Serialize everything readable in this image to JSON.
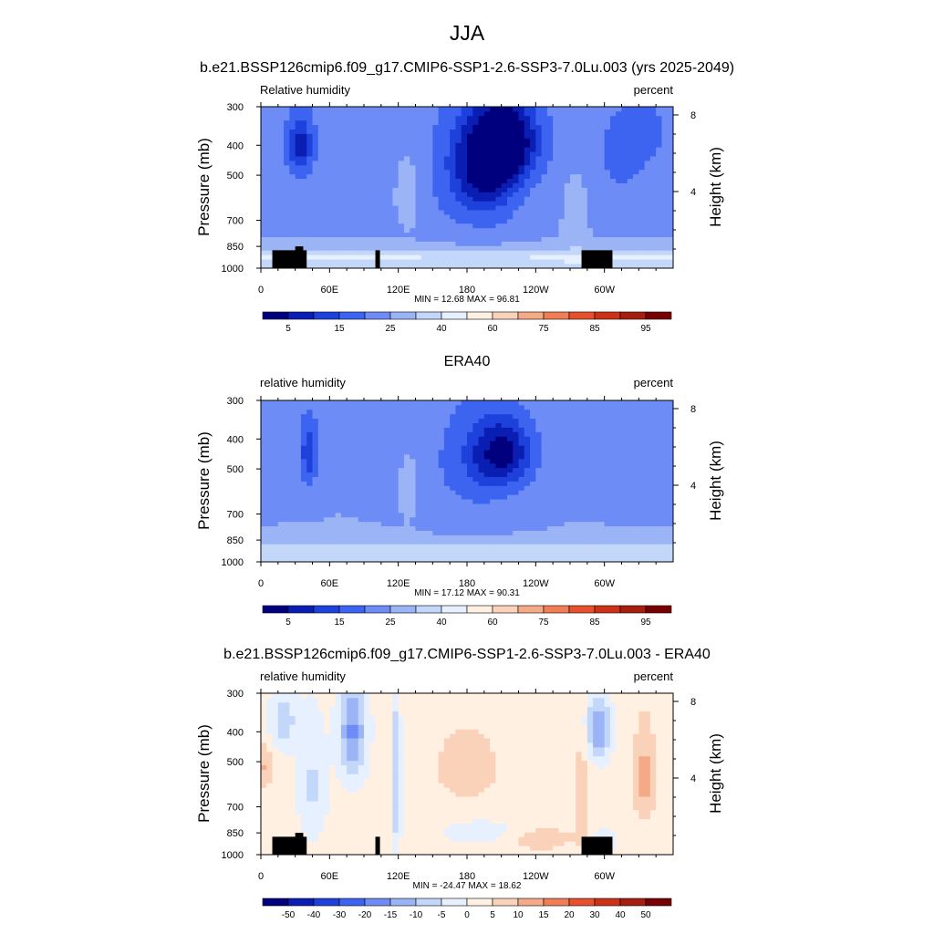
{
  "main_title": "JJA",
  "chart_data": [
    {
      "type": "heatmap",
      "title": "b.e21.BSSP126cmip6.f09_g17.CMIP6-SSP1-2.6-SSP3-7.0Lu.003 (yrs 2025-2049)",
      "left_label": "Relative humidity",
      "right_label": "percent",
      "ylabel": "Pressure (mb)",
      "y2label": "Height (km)",
      "x_ticks": [
        "0",
        "60E",
        "120E",
        "180",
        "120W",
        "60W"
      ],
      "x_range": [
        0,
        360
      ],
      "y_ticks": [
        "300",
        "400",
        "500",
        "700",
        "850",
        "1000"
      ],
      "y_range": [
        1000,
        300
      ],
      "y2_ticks": [
        "8",
        "4"
      ],
      "stats": "MIN =  12.68  MAX =  96.81",
      "colorbar": {
        "labels": [
          "5",
          "15",
          "25",
          "40",
          "60",
          "75",
          "85",
          "95"
        ],
        "colors": [
          "#00007f",
          "#0a1eb4",
          "#1e41dc",
          "#3c64f0",
          "#6e8cf5",
          "#9bb4f5",
          "#c3d7fa",
          "#e6f0ff",
          "#fff0e1",
          "#fad2b9",
          "#f5aa87",
          "#f07d55",
          "#e6502d",
          "#cd3219",
          "#a51e0f",
          "#780000"
        ]
      },
      "topography": true,
      "fields": {
        "base": 58,
        "surface_band": 86,
        "blobs": [
          {
            "lon": 35,
            "p": 400,
            "amp": -48,
            "wlon": 14,
            "wp": 120
          },
          {
            "lon": 180,
            "p": 470,
            "amp": -30,
            "wlon": 45,
            "wp": 260
          },
          {
            "lon": 200,
            "p": 500,
            "amp": -28,
            "wlon": 30,
            "wp": 220
          },
          {
            "lon": 220,
            "p": 380,
            "amp": -46,
            "wlon": 34,
            "wp": 140
          },
          {
            "lon": 315,
            "p": 420,
            "amp": -24,
            "wlon": 28,
            "wp": 190
          },
          {
            "lon": 340,
            "p": 350,
            "amp": -15,
            "wlon": 18,
            "wp": 100
          },
          {
            "lon": 5,
            "p": 380,
            "amp": -10,
            "wlon": 15,
            "wp": 150
          },
          {
            "lon": 130,
            "p": 560,
            "amp": 18,
            "wlon": 12,
            "wp": 160
          },
          {
            "lon": 275,
            "p": 650,
            "amp": 14,
            "wlon": 10,
            "wp": 200
          }
        ]
      }
    },
    {
      "type": "heatmap",
      "title": "ERA40",
      "left_label": "relative humidity",
      "right_label": "percent",
      "ylabel": "Pressure (mb)",
      "y2label": "Height (km)",
      "x_ticks": [
        "0",
        "60E",
        "120E",
        "180",
        "120W",
        "60W"
      ],
      "x_range": [
        0,
        360
      ],
      "y_ticks": [
        "300",
        "400",
        "500",
        "700",
        "850",
        "1000"
      ],
      "y_range": [
        1000,
        300
      ],
      "y2_ticks": [
        "8",
        "4"
      ],
      "stats": "MIN =  17.12  MAX =  90.31",
      "colorbar": {
        "labels": [
          "5",
          "15",
          "25",
          "40",
          "60",
          "75",
          "85",
          "95"
        ],
        "colors": [
          "#00007f",
          "#0a1eb4",
          "#1e41dc",
          "#3c64f0",
          "#6e8cf5",
          "#9bb4f5",
          "#c3d7fa",
          "#e6f0ff",
          "#fff0e1",
          "#fad2b9",
          "#f5aa87",
          "#f07d55",
          "#e6502d",
          "#cd3219",
          "#a51e0f",
          "#780000"
        ]
      },
      "topography": false,
      "fields": {
        "base": 60,
        "surface_band": 84,
        "blobs": [
          {
            "lon": 42,
            "p": 440,
            "amp": -44,
            "wlon": 10,
            "wp": 140
          },
          {
            "lon": 185,
            "p": 470,
            "amp": -28,
            "wlon": 45,
            "wp": 260
          },
          {
            "lon": 215,
            "p": 440,
            "amp": -42,
            "wlon": 30,
            "wp": 130
          },
          {
            "lon": 330,
            "p": 450,
            "amp": -20,
            "wlon": 25,
            "wp": 180
          },
          {
            "lon": 5,
            "p": 450,
            "amp": -12,
            "wlon": 15,
            "wp": 160
          },
          {
            "lon": 130,
            "p": 560,
            "amp": 12,
            "wlon": 8,
            "wp": 140
          }
        ]
      }
    },
    {
      "type": "heatmap",
      "title": "b.e21.BSSP126cmip6.f09_g17.CMIP6-SSP1-2.6-SSP3-7.0Lu.003 - ERA40",
      "left_label": "relative humidity",
      "right_label": "percent",
      "ylabel": "Pressure (mb)",
      "y2label": "Height (km)",
      "x_ticks": [
        "0",
        "60E",
        "120E",
        "180",
        "120W",
        "60W"
      ],
      "x_range": [
        0,
        360
      ],
      "y_ticks": [
        "300",
        "400",
        "500",
        "700",
        "850",
        "1000"
      ],
      "y_range": [
        1000,
        300
      ],
      "y2_ticks": [
        "8",
        "4"
      ],
      "stats": "MIN = -24.47  MAX =  18.62",
      "colorbar": {
        "labels": [
          "-50",
          "-40",
          "-30",
          "-20",
          "-15",
          "-10",
          "-5",
          "0",
          "5",
          "10",
          "15",
          "20",
          "30",
          "40",
          "50"
        ],
        "colors": [
          "#00007f",
          "#0a1eb4",
          "#1e41dc",
          "#3c64f0",
          "#6e8cf5",
          "#9bb4f5",
          "#c3d7fa",
          "#e6f0ff",
          "#fff0e1",
          "#fad2b9",
          "#f5aa87",
          "#f07d55",
          "#e6502d",
          "#cd3219",
          "#a51e0f",
          "#780000"
        ]
      },
      "topography": true,
      "fields": {
        "base": 2,
        "surface_band": 0,
        "blobs": [
          {
            "lon": 80,
            "p": 400,
            "amp": -18,
            "wlon": 12,
            "wp": 150
          },
          {
            "lon": 20,
            "p": 370,
            "amp": -10,
            "wlon": 12,
            "wp": 80
          },
          {
            "lon": 45,
            "p": 600,
            "amp": -8,
            "wlon": 12,
            "wp": 250
          },
          {
            "lon": 118,
            "p": 600,
            "amp": -12,
            "wlon": 4,
            "wp": 350
          },
          {
            "lon": 295,
            "p": 390,
            "amp": -18,
            "wlon": 10,
            "wp": 90
          },
          {
            "lon": 300,
            "p": 900,
            "amp": -12,
            "wlon": 8,
            "wp": 60
          },
          {
            "lon": 200,
            "p": 850,
            "amp": -6,
            "wlon": 40,
            "wp": 80
          },
          {
            "lon": 4,
            "p": 520,
            "amp": 9,
            "wlon": 5,
            "wp": 90
          },
          {
            "lon": 180,
            "p": 520,
            "amp": 7,
            "wlon": 28,
            "wp": 140
          },
          {
            "lon": 335,
            "p": 560,
            "amp": 10,
            "wlon": 10,
            "wp": 200
          },
          {
            "lon": 240,
            "p": 880,
            "amp": 7,
            "wlon": 35,
            "wp": 90
          },
          {
            "lon": 280,
            "p": 640,
            "amp": 8,
            "wlon": 6,
            "wp": 220
          }
        ]
      }
    }
  ]
}
